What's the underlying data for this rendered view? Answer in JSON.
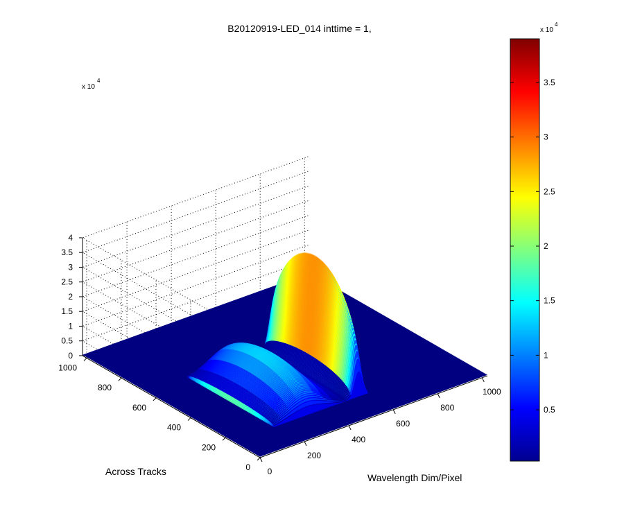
{
  "chart_data": {
    "type": "surface",
    "title": "B20120919-LED_014 inttime = 1,",
    "xlabel": "Wavelength Dim/Pixel",
    "ylabel": "Across Tracks",
    "zlabel": "",
    "z_exponent_label": "x 10",
    "z_exponent": "4",
    "x_range": [
      0,
      1024
    ],
    "y_range": [
      0,
      1024
    ],
    "zlim": [
      0,
      40000
    ],
    "x_ticks": [
      0,
      200,
      400,
      600,
      800,
      1000
    ],
    "y_ticks": [
      0,
      200,
      400,
      600,
      800,
      1000
    ],
    "z_ticks": [
      0,
      0.5,
      1,
      1.5,
      2,
      2.5,
      3,
      3.5,
      4
    ],
    "x_tick_labels": [
      "0",
      "200",
      "400",
      "600",
      "800",
      "1000"
    ],
    "y_tick_labels": [
      "0",
      "200",
      "400",
      "600",
      "800",
      "1000"
    ],
    "z_tick_labels": [
      "0",
      "0.5",
      "1",
      "1.5",
      "2",
      "2.5",
      "3",
      "3.5",
      "4"
    ],
    "grid": true,
    "colormap": "jet",
    "illuminated_band": {
      "across_track_range": [
        150,
        650
      ]
    },
    "spectrum_peaks": [
      {
        "pixel": 330,
        "width": 80,
        "counts": 13000
      },
      {
        "pixel": 560,
        "width": 18,
        "counts": 39000
      }
    ],
    "colorbar": {
      "exponent_label": "x 10",
      "exponent": "4",
      "range": [
        300,
        39000
      ],
      "ticks": [
        0.5,
        1,
        1.5,
        2,
        2.5,
        3,
        3.5
      ],
      "tick_labels": [
        "0.5",
        "1",
        "1.5",
        "2",
        "2.5",
        "3",
        "3.5"
      ]
    },
    "colors": {
      "background_low": "#00008f",
      "peak": "#800000",
      "axes": "#000000"
    }
  }
}
